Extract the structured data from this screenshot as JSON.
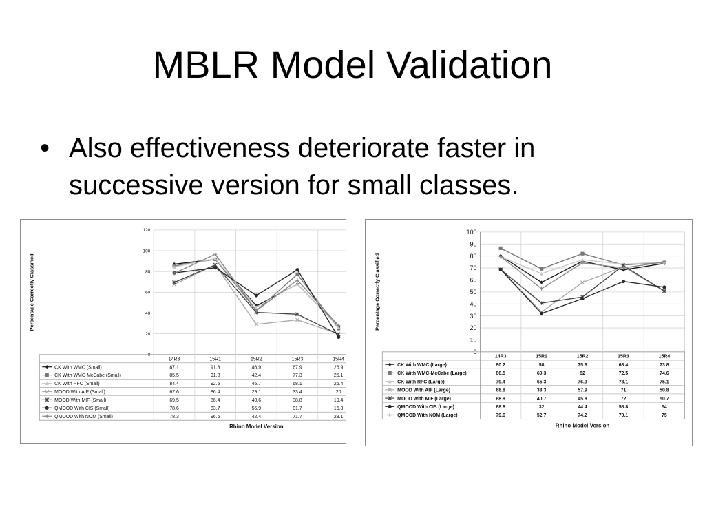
{
  "slide": {
    "title": "MBLR Model Validation",
    "bullet": "Also effectiveness deteriorate faster in successive version for small classes."
  },
  "chart_data": [
    {
      "type": "line",
      "title": "",
      "xlabel": "Rhino Model Version",
      "ylabel": "Percentage Correctly Classified",
      "ylim": [
        0,
        120
      ],
      "yticks": [
        0,
        20,
        40,
        60,
        80,
        100,
        120
      ],
      "grid": true,
      "legend": "data-table-below",
      "colors": [
        "#1a1a1a",
        "#777777",
        "#c8c8c8",
        "#aaaaaa",
        "#444444",
        "#2a2a2a",
        "#888888"
      ],
      "categories": [
        "14R3",
        "15R1",
        "15R2",
        "15R3",
        "15R4"
      ],
      "series": [
        {
          "name": "CK With WMC (Small)",
          "values": [
            87.1,
            91.8,
            46.9,
            67.9,
            26.9
          ],
          "marker": "diamond"
        },
        {
          "name": "CK With WMC-McCabe (Small)",
          "values": [
            85.5,
            91.8,
            42.4,
            77.3,
            25.1
          ],
          "marker": "square"
        },
        {
          "name": "CK With RFC (Small)",
          "values": [
            84.4,
            92.5,
            45.7,
            68.1,
            26.4
          ],
          "marker": "triangle"
        },
        {
          "name": "MOOD With AIF (Small)",
          "values": [
            67.6,
            86.4,
            29.1,
            33.4,
            20
          ],
          "marker": "x"
        },
        {
          "name": "MOOD With MIF (Small)",
          "values": [
            69.5,
            86.4,
            40.6,
            38.8,
            19.4
          ],
          "marker": "star"
        },
        {
          "name": "QMOOD With CIS (Small)",
          "values": [
            78.6,
            83.7,
            56.9,
            81.7,
            16.8
          ],
          "marker": "circle"
        },
        {
          "name": "QMOOD With NOM (Small)",
          "values": [
            78.3,
            96.6,
            42.4,
            71.7,
            28.1
          ],
          "marker": "plus"
        }
      ]
    },
    {
      "type": "line",
      "title": "",
      "xlabel": "Rhino Model Version",
      "ylabel": "Percentage Correctly Classified",
      "ylim": [
        0,
        100
      ],
      "yticks": [
        0,
        10,
        20,
        30,
        40,
        50,
        60,
        70,
        80,
        90,
        100
      ],
      "grid": true,
      "legend": "data-table-below",
      "colors": [
        "#1a1a1a",
        "#777777",
        "#c8c8c8",
        "#aaaaaa",
        "#444444",
        "#2a2a2a",
        "#888888"
      ],
      "categories": [
        "14R3",
        "15R1",
        "15R2",
        "15R3",
        "15R4"
      ],
      "series": [
        {
          "name": "CK With WMC (Large)",
          "values": [
            80.2,
            58,
            75.6,
            68.4,
            73.8
          ],
          "marker": "diamond"
        },
        {
          "name": "CK With WMC-McCabe (Large)",
          "values": [
            86.5,
            69.3,
            82,
            72.5,
            74.6
          ],
          "marker": "square"
        },
        {
          "name": "CK With RFC (Large)",
          "values": [
            79.4,
            65.3,
            76.9,
            73.1,
            75.1
          ],
          "marker": "triangle"
        },
        {
          "name": "MOOD With AIF (Large)",
          "values": [
            68.8,
            33.3,
            57.9,
            71,
            50.8
          ],
          "marker": "x"
        },
        {
          "name": "MOOD With MIF (Large)",
          "values": [
            68.8,
            40.7,
            45.8,
            72,
            50.7
          ],
          "marker": "star"
        },
        {
          "name": "QMOOD With CIS (Large)",
          "values": [
            68.8,
            32,
            44.4,
            58.8,
            54
          ],
          "marker": "circle"
        },
        {
          "name": "QMOOD With NOM (Large)",
          "values": [
            79.6,
            52.7,
            74.2,
            70.1,
            75
          ],
          "marker": "plus"
        }
      ]
    }
  ]
}
